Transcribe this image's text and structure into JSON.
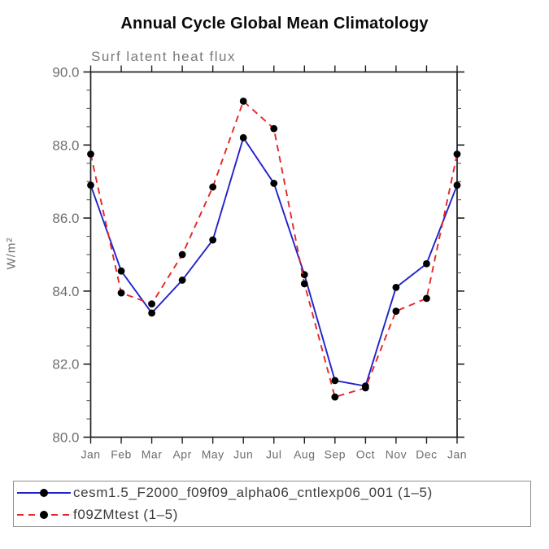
{
  "chart_data": {
    "type": "line",
    "title": "Annual Cycle Global Mean Climatology",
    "subtitle": "Surf latent heat flux",
    "ylabel": "W/m²",
    "xlabel": "",
    "categories": [
      "Jan",
      "Feb",
      "Mar",
      "Apr",
      "May",
      "Jun",
      "Jul",
      "Aug",
      "Sep",
      "Oct",
      "Nov",
      "Dec",
      "Jan"
    ],
    "ylim": [
      80.0,
      90.0
    ],
    "ytick_major": [
      80.0,
      82.0,
      84.0,
      86.0,
      88.0,
      90.0
    ],
    "ytick_labels": [
      "80.0",
      "82.0",
      "84.0",
      "86.0",
      "88.0",
      "90.0"
    ],
    "ytick_minor_step": 0.5,
    "grid": "off",
    "legend_position": "bottom-box",
    "series": [
      {
        "name": "cesm1.5_F2000_f09f09_alpha06_cntlexp06_001 (1–5)",
        "style": "solid",
        "color": "#2222cc",
        "values": [
          86.9,
          84.55,
          83.4,
          84.3,
          85.4,
          88.2,
          86.95,
          84.45,
          81.55,
          81.4,
          84.1,
          84.75,
          86.9
        ]
      },
      {
        "name": "f09ZMtest (1–5)",
        "style": "dashed",
        "color": "#e62626",
        "values": [
          87.75,
          83.95,
          83.65,
          85.0,
          86.85,
          89.2,
          88.45,
          84.2,
          81.1,
          81.35,
          83.45,
          83.8,
          87.75
        ]
      }
    ],
    "marker": {
      "shape": "circle",
      "color": "#000000"
    },
    "axis_color": "#1f1f1f",
    "tick_label_color": "#6e6e6e"
  }
}
